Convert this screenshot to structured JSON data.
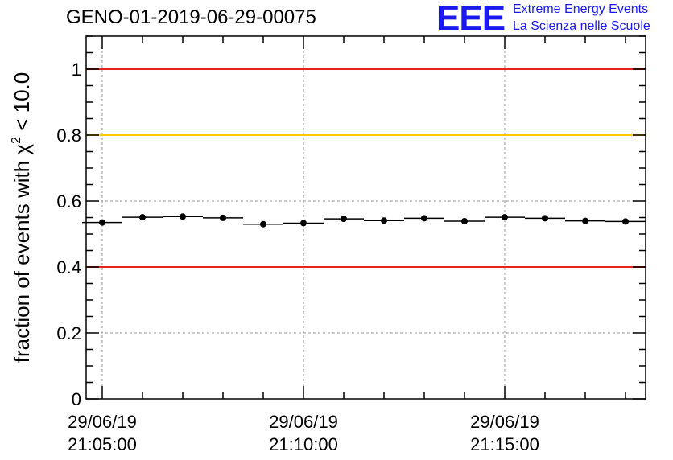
{
  "header": {
    "title": "GENO-01-2019-06-29-00075",
    "logo_mark": "EEE",
    "logo_line1": "Extreme Energy Events",
    "logo_line2": "La Scienza nelle Scuole"
  },
  "colors": {
    "red_line": "#e8211d",
    "yellow_line": "#ffc800",
    "logo": "#1a1aee"
  },
  "chart_data": {
    "type": "scatter",
    "title": "GENO-01-2019-06-29-00075",
    "ylabel_parts": [
      "fraction of events with ",
      "χ",
      "2",
      " < 10.0"
    ],
    "xlabel": "",
    "xlim": [
      -40,
      1350
    ],
    "ylim": [
      0,
      1.1
    ],
    "grid": true,
    "y_ticks": [
      0,
      0.2,
      0.4,
      0.6,
      0.8,
      1
    ],
    "y_tick_labels": [
      "0",
      "0.2",
      "0.4",
      "0.6",
      "0.8",
      "1"
    ],
    "x_major_ticks": [
      0,
      500,
      1000
    ],
    "x_tick_labels": [
      [
        "29/06/19",
        "21:05:00"
      ],
      [
        "29/06/19",
        "21:10:00"
      ],
      [
        "29/06/19",
        "21:15:00"
      ]
    ],
    "reference_lines": [
      {
        "y": 1.0,
        "color": "red"
      },
      {
        "y": 0.8,
        "color": "yellow"
      },
      {
        "y": 0.4,
        "color": "red"
      }
    ],
    "bin_width": 100,
    "x": [
      0,
      100,
      200,
      300,
      400,
      500,
      600,
      700,
      800,
      900,
      1000,
      1100,
      1200,
      1300
    ],
    "y": [
      0.535,
      0.551,
      0.553,
      0.549,
      0.53,
      0.533,
      0.546,
      0.541,
      0.548,
      0.539,
      0.551,
      0.548,
      0.54,
      0.538
    ]
  }
}
